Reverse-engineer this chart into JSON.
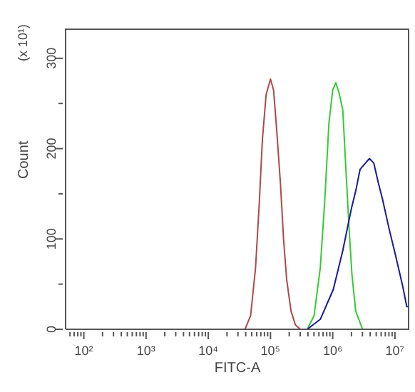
{
  "chart_data": {
    "type": "line",
    "xlabel": "FITC-A",
    "ylabel": "Count",
    "annotations": [
      "(x 10¹)"
    ],
    "xlim": [
      51,
      17000000
    ],
    "ylim": [
      0,
      333
    ],
    "log": "x",
    "marker": "none",
    "line_style": "solid",
    "xticks": [
      {
        "value": 60,
        "label": null
      },
      {
        "value": 70,
        "label": null
      },
      {
        "value": 80,
        "label": null
      },
      {
        "value": 90,
        "label": null
      },
      {
        "value": 100,
        "label": "10²"
      },
      {
        "value": 200,
        "label": null
      },
      {
        "value": 300,
        "label": null
      },
      {
        "value": 400,
        "label": null
      },
      {
        "value": 500,
        "label": null
      },
      {
        "value": 600,
        "label": null
      },
      {
        "value": 700,
        "label": null
      },
      {
        "value": 800,
        "label": null
      },
      {
        "value": 900,
        "label": null
      },
      {
        "value": 1000,
        "label": "10³"
      },
      {
        "value": 2000,
        "label": null
      },
      {
        "value": 3000,
        "label": null
      },
      {
        "value": 4000,
        "label": null
      },
      {
        "value": 5000,
        "label": null
      },
      {
        "value": 6000,
        "label": null
      },
      {
        "value": 7000,
        "label": null
      },
      {
        "value": 8000,
        "label": null
      },
      {
        "value": 9000,
        "label": null
      },
      {
        "value": 10000,
        "label": "10⁴"
      },
      {
        "value": 20000,
        "label": null
      },
      {
        "value": 30000,
        "label": null
      },
      {
        "value": 40000,
        "label": null
      },
      {
        "value": 50000,
        "label": null
      },
      {
        "value": 60000,
        "label": null
      },
      {
        "value": 70000,
        "label": null
      },
      {
        "value": 80000,
        "label": null
      },
      {
        "value": 90000,
        "label": null
      },
      {
        "value": 100000,
        "label": "10⁵"
      },
      {
        "value": 200000,
        "label": null
      },
      {
        "value": 300000,
        "label": null
      },
      {
        "value": 400000,
        "label": null
      },
      {
        "value": 500000,
        "label": null
      },
      {
        "value": 600000,
        "label": null
      },
      {
        "value": 700000,
        "label": null
      },
      {
        "value": 800000,
        "label": null
      },
      {
        "value": 900000,
        "label": null
      },
      {
        "value": 1000000,
        "label": "10⁶"
      },
      {
        "value": 2000000,
        "label": null
      },
      {
        "value": 3000000,
        "label": null
      },
      {
        "value": 4000000,
        "label": null
      },
      {
        "value": 5000000,
        "label": null
      },
      {
        "value": 6000000,
        "label": null
      },
      {
        "value": 7000000,
        "label": null
      },
      {
        "value": 8000000,
        "label": null
      },
      {
        "value": 9000000,
        "label": null
      },
      {
        "value": 10000000,
        "label": "10⁷"
      }
    ],
    "yticks": [
      0,
      {
        "value": 50,
        "label": null
      },
      100,
      {
        "value": 150,
        "label": null
      },
      200,
      {
        "value": 250,
        "label": null
      },
      300
    ],
    "series": [
      {
        "color": "#b04848",
        "x": [
          38900,
          47900,
          57500,
          66100,
          74100,
          85100,
          100000,
          112000,
          126000,
          145000,
          162000,
          182000,
          214000,
          251000,
          302000
        ],
        "values": [
          0,
          15,
          68,
          140,
          210,
          260,
          277,
          265,
          220,
          160,
          100,
          55,
          20,
          5,
          0
        ]
      },
      {
        "color": "#33cc33",
        "x": [
          389000,
          501000,
          631000,
          741000,
          871000,
          1000000,
          1120000,
          1260000,
          1450000,
          1620000,
          1820000,
          2040000,
          2340000,
          3020000
        ],
        "values": [
          0,
          15,
          68,
          140,
          229,
          265,
          273,
          262,
          243,
          180,
          115,
          60,
          20,
          0
        ]
      },
      {
        "color": "#1a1a99",
        "x": [
          389000,
          631000,
          1020000,
          1450000,
          2000000,
          2340000,
          2750000,
          3550000,
          3890000,
          4570000,
          5370000,
          6310000,
          8130000,
          10200000,
          13200000,
          15500000,
          17000000,
          17000000
        ],
        "values": [
          0,
          11,
          44,
          87,
          134,
          153,
          177,
          186,
          189,
          184,
          163,
          144,
          110,
          82,
          49,
          25,
          25,
          75
        ]
      }
    ]
  }
}
